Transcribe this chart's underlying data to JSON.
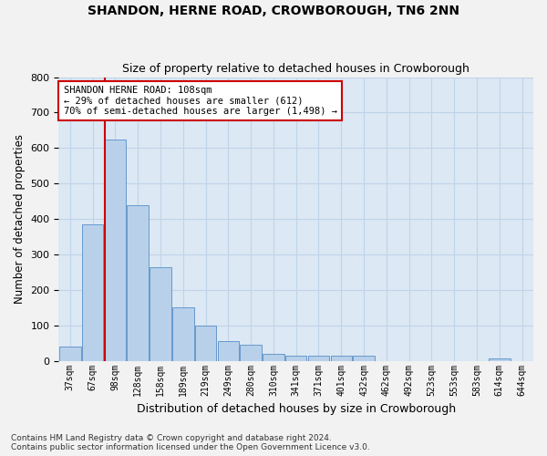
{
  "title": "SHANDON, HERNE ROAD, CROWBOROUGH, TN6 2NN",
  "subtitle": "Size of property relative to detached houses in Crowborough",
  "xlabel": "Distribution of detached houses by size in Crowborough",
  "ylabel": "Number of detached properties",
  "footnote1": "Contains HM Land Registry data © Crown copyright and database right 2024.",
  "footnote2": "Contains public sector information licensed under the Open Government Licence v3.0.",
  "annotation_line1": "SHANDON HERNE ROAD: 108sqm",
  "annotation_line2": "← 29% of detached houses are smaller (612)",
  "annotation_line3": "70% of semi-detached houses are larger (1,498) →",
  "bar_color": "#b8d0ea",
  "bar_edge_color": "#6699cc",
  "grid_color": "#c0d4e8",
  "background_color": "#dce8f4",
  "fig_background": "#f2f2f2",
  "marker_line_color": "#cc0000",
  "annotation_box_facecolor": "#ffffff",
  "annotation_border_color": "#cc0000",
  "bin_labels": [
    "37sqm",
    "67sqm",
    "98sqm",
    "128sqm",
    "158sqm",
    "189sqm",
    "219sqm",
    "249sqm",
    "280sqm",
    "310sqm",
    "341sqm",
    "371sqm",
    "401sqm",
    "432sqm",
    "462sqm",
    "492sqm",
    "523sqm",
    "553sqm",
    "583sqm",
    "614sqm",
    "644sqm"
  ],
  "values": [
    40,
    385,
    625,
    440,
    265,
    150,
    100,
    55,
    45,
    20,
    15,
    15,
    15,
    15,
    0,
    0,
    0,
    0,
    0,
    8,
    0
  ],
  "marker_bar_index": 2,
  "ylim": [
    0,
    800
  ],
  "yticks": [
    0,
    100,
    200,
    300,
    400,
    500,
    600,
    700,
    800
  ],
  "figsize": [
    6.0,
    5.0
  ],
  "dpi": 100
}
